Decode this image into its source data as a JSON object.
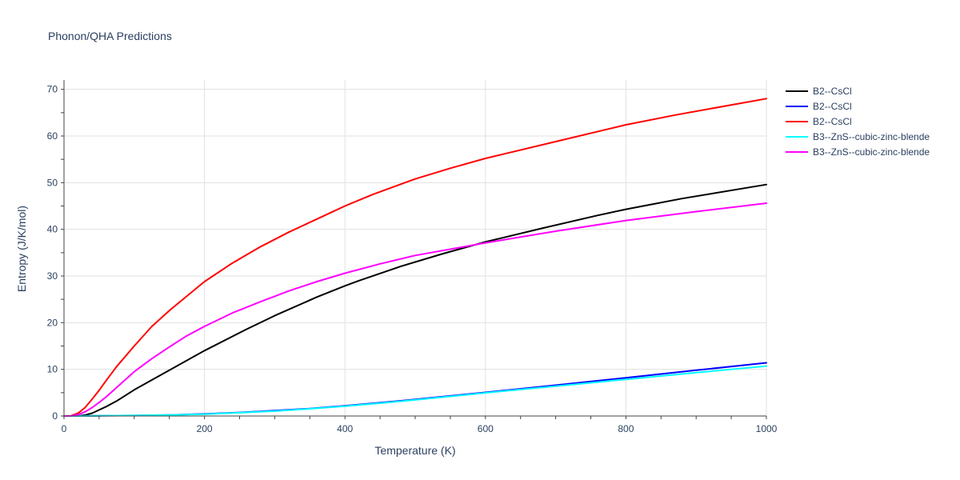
{
  "chart_data": {
    "type": "line",
    "title": "Phonon/QHA Predictions",
    "xlabel": "Temperature (K)",
    "ylabel": "Entropy (J/K/mol)",
    "xlim": [
      0,
      1000
    ],
    "ylim": [
      0,
      72
    ],
    "x_ticks": [
      "0",
      "200",
      "400",
      "600",
      "800",
      "1000"
    ],
    "y_ticks": [
      "0",
      "10",
      "20",
      "30",
      "40",
      "50",
      "60",
      "70"
    ],
    "grid": true,
    "legend_position": "top-right",
    "series": [
      {
        "name": "B2--CsCl",
        "color": "#000000",
        "points": [
          [
            0,
            0
          ],
          [
            20,
            0
          ],
          [
            30,
            0.2
          ],
          [
            40,
            0.6
          ],
          [
            50,
            1.3
          ],
          [
            60,
            2.0
          ],
          [
            75,
            3.2
          ],
          [
            100,
            5.6
          ],
          [
            150,
            9.8
          ],
          [
            200,
            14.0
          ],
          [
            260,
            18.6
          ],
          [
            300,
            21.5
          ],
          [
            360,
            25.5
          ],
          [
            400,
            27.9
          ],
          [
            420,
            29.0
          ],
          [
            480,
            32.1
          ],
          [
            540,
            34.8
          ],
          [
            600,
            37.3
          ],
          [
            680,
            40.2
          ],
          [
            760,
            43.0
          ],
          [
            800,
            44.3
          ],
          [
            880,
            46.6
          ],
          [
            1000,
            49.6
          ]
        ]
      },
      {
        "name": "B2--CsCl",
        "color": "#0000ff",
        "points": [
          [
            0,
            0
          ],
          [
            50,
            0.05
          ],
          [
            100,
            0.1
          ],
          [
            150,
            0.2
          ],
          [
            200,
            0.45
          ],
          [
            250,
            0.75
          ],
          [
            300,
            1.15
          ],
          [
            350,
            1.6
          ],
          [
            400,
            2.2
          ],
          [
            450,
            2.85
          ],
          [
            500,
            3.55
          ],
          [
            550,
            4.3
          ],
          [
            600,
            5.05
          ],
          [
            700,
            6.6
          ],
          [
            800,
            8.2
          ],
          [
            900,
            9.8
          ],
          [
            1000,
            11.4
          ]
        ]
      },
      {
        "name": "B2--CsCl",
        "color": "#ff0000",
        "points": [
          [
            0,
            0
          ],
          [
            10,
            0.05
          ],
          [
            20,
            0.6
          ],
          [
            30,
            1.8
          ],
          [
            40,
            3.6
          ],
          [
            50,
            5.5
          ],
          [
            60,
            7.6
          ],
          [
            75,
            10.6
          ],
          [
            100,
            15.0
          ],
          [
            125,
            19.2
          ],
          [
            150,
            22.6
          ],
          [
            175,
            25.7
          ],
          [
            200,
            28.8
          ],
          [
            240,
            32.8
          ],
          [
            280,
            36.3
          ],
          [
            320,
            39.4
          ],
          [
            380,
            43.6
          ],
          [
            400,
            45.0
          ],
          [
            440,
            47.5
          ],
          [
            500,
            50.8
          ],
          [
            550,
            53.1
          ],
          [
            600,
            55.2
          ],
          [
            700,
            58.8
          ],
          [
            800,
            62.4
          ],
          [
            870,
            64.5
          ],
          [
            1000,
            68.0
          ]
        ]
      },
      {
        "name": "B3--ZnS--cubic-zinc-blende",
        "color": "#00ffff",
        "points": [
          [
            0,
            0
          ],
          [
            50,
            0.05
          ],
          [
            100,
            0.1
          ],
          [
            150,
            0.2
          ],
          [
            200,
            0.4
          ],
          [
            250,
            0.7
          ],
          [
            300,
            1.05
          ],
          [
            350,
            1.55
          ],
          [
            400,
            2.1
          ],
          [
            450,
            2.75
          ],
          [
            500,
            3.45
          ],
          [
            550,
            4.2
          ],
          [
            600,
            4.95
          ],
          [
            700,
            6.4
          ],
          [
            800,
            7.85
          ],
          [
            900,
            9.3
          ],
          [
            1000,
            10.7
          ]
        ]
      },
      {
        "name": "B3--ZnS--cubic-zinc-blende",
        "color": "#ff00ff",
        "points": [
          [
            0,
            0
          ],
          [
            10,
            0.02
          ],
          [
            20,
            0.3
          ],
          [
            30,
            0.9
          ],
          [
            40,
            1.8
          ],
          [
            50,
            2.9
          ],
          [
            60,
            4.1
          ],
          [
            75,
            6.1
          ],
          [
            100,
            9.5
          ],
          [
            125,
            12.3
          ],
          [
            150,
            14.8
          ],
          [
            175,
            17.2
          ],
          [
            200,
            19.2
          ],
          [
            240,
            22.1
          ],
          [
            280,
            24.5
          ],
          [
            320,
            26.8
          ],
          [
            360,
            28.8
          ],
          [
            400,
            30.6
          ],
          [
            450,
            32.6
          ],
          [
            500,
            34.4
          ],
          [
            600,
            37.1
          ],
          [
            700,
            39.6
          ],
          [
            800,
            41.9
          ],
          [
            900,
            43.8
          ],
          [
            1000,
            45.6
          ]
        ]
      }
    ]
  }
}
